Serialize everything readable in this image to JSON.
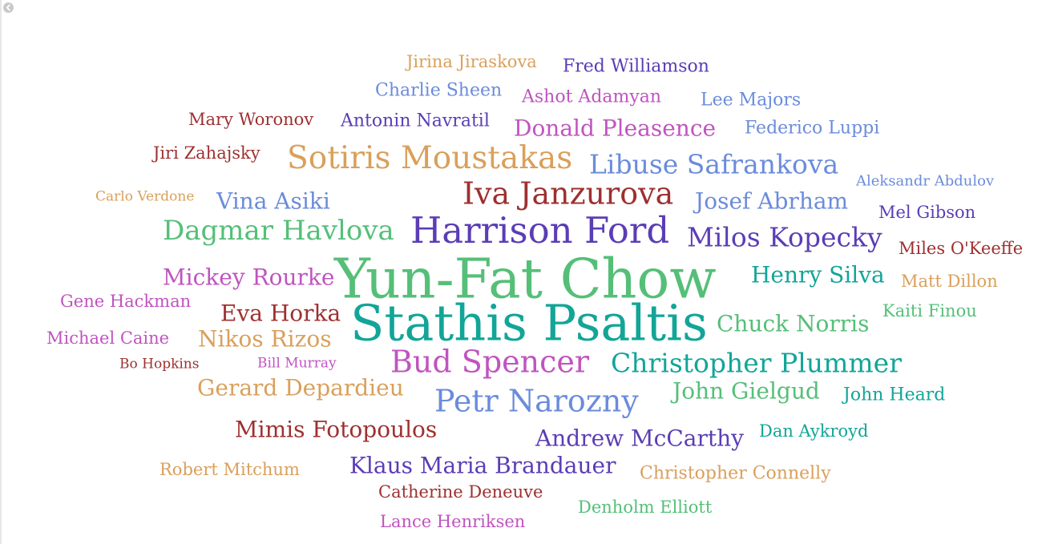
{
  "nav": {
    "back_icon": "chevron-left-icon"
  },
  "colors": {
    "tan": "#d9a05b",
    "purple": "#5b3db5",
    "blue": "#6b8cdb",
    "magenta": "#c054c0",
    "brick": "#9e3030",
    "green": "#55bf78",
    "teal": "#12a598"
  },
  "words": [
    {
      "id": "jirina-jiraskova",
      "text": "Jirina Jiraskova",
      "color": "tan"
    },
    {
      "id": "fred-williamson",
      "text": "Fred Williamson",
      "color": "purple"
    },
    {
      "id": "charlie-sheen",
      "text": "Charlie Sheen",
      "color": "blue"
    },
    {
      "id": "ashot-adamyan",
      "text": "Ashot Adamyan",
      "color": "magenta"
    },
    {
      "id": "lee-majors",
      "text": "Lee Majors",
      "color": "blue"
    },
    {
      "id": "mary-woronov",
      "text": "Mary Woronov",
      "color": "brick"
    },
    {
      "id": "antonin-navratil",
      "text": "Antonin Navratil",
      "color": "purple"
    },
    {
      "id": "donald-pleasence",
      "text": "Donald Pleasence",
      "color": "magenta"
    },
    {
      "id": "federico-luppi",
      "text": "Federico Luppi",
      "color": "blue"
    },
    {
      "id": "jiri-zahajsky",
      "text": "Jiri Zahajsky",
      "color": "brick"
    },
    {
      "id": "sotiris-moustakas",
      "text": "Sotiris Moustakas",
      "color": "tan"
    },
    {
      "id": "libuse-safrankova",
      "text": "Libuse Safrankova",
      "color": "blue"
    },
    {
      "id": "aleksandr-abdulov",
      "text": "Aleksandr Abdulov",
      "color": "blue"
    },
    {
      "id": "carlo-verdone",
      "text": "Carlo Verdone",
      "color": "tan"
    },
    {
      "id": "vina-asiki",
      "text": "Vina Asiki",
      "color": "blue"
    },
    {
      "id": "iva-janzurova",
      "text": "Iva Janzurova",
      "color": "brick"
    },
    {
      "id": "josef-abrham",
      "text": "Josef Abrham",
      "color": "blue"
    },
    {
      "id": "mel-gibson",
      "text": "Mel Gibson",
      "color": "purple"
    },
    {
      "id": "dagmar-havlova",
      "text": "Dagmar Havlova",
      "color": "green"
    },
    {
      "id": "harrison-ford",
      "text": "Harrison Ford",
      "color": "purple"
    },
    {
      "id": "milos-kopecky",
      "text": "Milos Kopecky",
      "color": "purple"
    },
    {
      "id": "miles-okeeffe",
      "text": "Miles O'Keeffe",
      "color": "brick"
    },
    {
      "id": "mickey-rourke",
      "text": "Mickey Rourke",
      "color": "magenta"
    },
    {
      "id": "yun-fat-chow",
      "text": "Yun-Fat Chow",
      "color": "green"
    },
    {
      "id": "henry-silva",
      "text": "Henry Silva",
      "color": "teal"
    },
    {
      "id": "matt-dillon",
      "text": "Matt Dillon",
      "color": "tan"
    },
    {
      "id": "gene-hackman",
      "text": "Gene Hackman",
      "color": "magenta"
    },
    {
      "id": "eva-horka",
      "text": "Eva Horka",
      "color": "brick"
    },
    {
      "id": "stathis-psaltis",
      "text": "Stathis Psaltis",
      "color": "teal"
    },
    {
      "id": "kaiti-finou",
      "text": "Kaiti Finou",
      "color": "green"
    },
    {
      "id": "chuck-norris",
      "text": "Chuck Norris",
      "color": "green"
    },
    {
      "id": "michael-caine",
      "text": "Michael Caine",
      "color": "magenta"
    },
    {
      "id": "nikos-rizos",
      "text": "Nikos Rizos",
      "color": "tan"
    },
    {
      "id": "bo-hopkins",
      "text": "Bo Hopkins",
      "color": "brick"
    },
    {
      "id": "bill-murray",
      "text": "Bill Murray",
      "color": "magenta"
    },
    {
      "id": "bud-spencer",
      "text": "Bud Spencer",
      "color": "magenta"
    },
    {
      "id": "christopher-plummer",
      "text": "Christopher Plummer",
      "color": "teal"
    },
    {
      "id": "gerard-depardieu",
      "text": "Gerard Depardieu",
      "color": "tan"
    },
    {
      "id": "petr-narozny",
      "text": "Petr Narozny",
      "color": "blue"
    },
    {
      "id": "john-gielgud",
      "text": "John Gielgud",
      "color": "green"
    },
    {
      "id": "john-heard",
      "text": "John Heard",
      "color": "teal"
    },
    {
      "id": "mimis-fotopoulos",
      "text": "Mimis Fotopoulos",
      "color": "brick"
    },
    {
      "id": "andrew-mccarthy",
      "text": "Andrew McCarthy",
      "color": "purple"
    },
    {
      "id": "dan-aykroyd",
      "text": "Dan Aykroyd",
      "color": "teal"
    },
    {
      "id": "robert-mitchum",
      "text": "Robert Mitchum",
      "color": "tan"
    },
    {
      "id": "klaus-maria-brandauer",
      "text": "Klaus Maria Brandauer",
      "color": "purple"
    },
    {
      "id": "christopher-connelly",
      "text": "Christopher Connelly",
      "color": "tan"
    },
    {
      "id": "catherine-deneuve",
      "text": "Catherine Deneuve",
      "color": "brick"
    },
    {
      "id": "denholm-elliott",
      "text": "Denholm Elliott",
      "color": "green"
    },
    {
      "id": "lance-henriksen",
      "text": "Lance Henriksen",
      "color": "magenta"
    }
  ]
}
